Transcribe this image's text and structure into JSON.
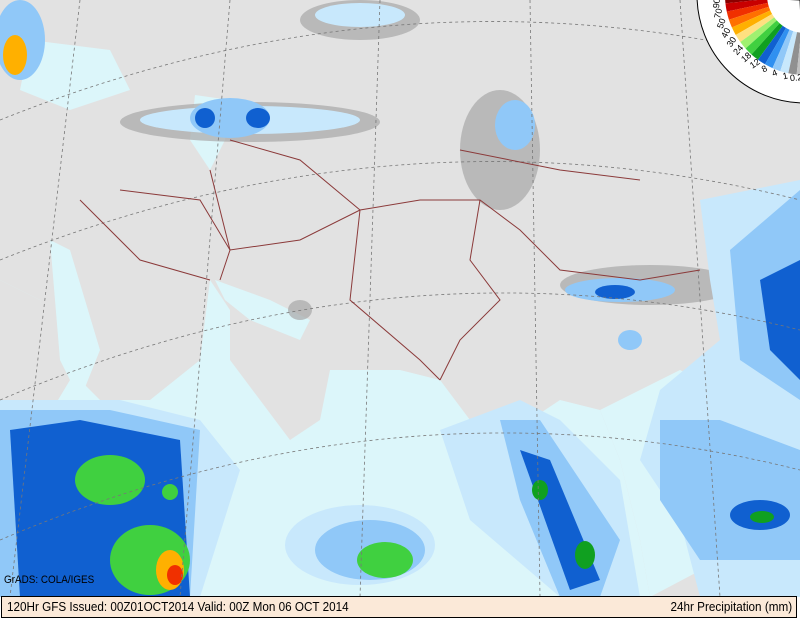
{
  "footer": {
    "left_text": "120Hr GFS Issued: 00Z01OCT2014 Valid: 00Z Mon 06 OCT 2014",
    "right_text": "24hr Precipitation (mm)"
  },
  "credit": "GrADS: COLA/IGES",
  "legend": {
    "labels": [
      "90",
      "70",
      "50",
      "40",
      "30",
      "24",
      "18",
      "12",
      "8",
      "4",
      "1",
      "0.2"
    ],
    "colors": [
      "#8b0000",
      "#c80000",
      "#f03000",
      "#ff7000",
      "#ffb000",
      "#ffe080",
      "#a0f070",
      "#40d040",
      "#10a020",
      "#1060d0",
      "#3090f0",
      "#90c8f8",
      "#c8e8fc",
      "#909090",
      "#c0c0c0"
    ]
  },
  "colors": {
    "land": "#e2e2e2",
    "sea": "#dcf6fa",
    "borders": "#8b3a3a"
  }
}
